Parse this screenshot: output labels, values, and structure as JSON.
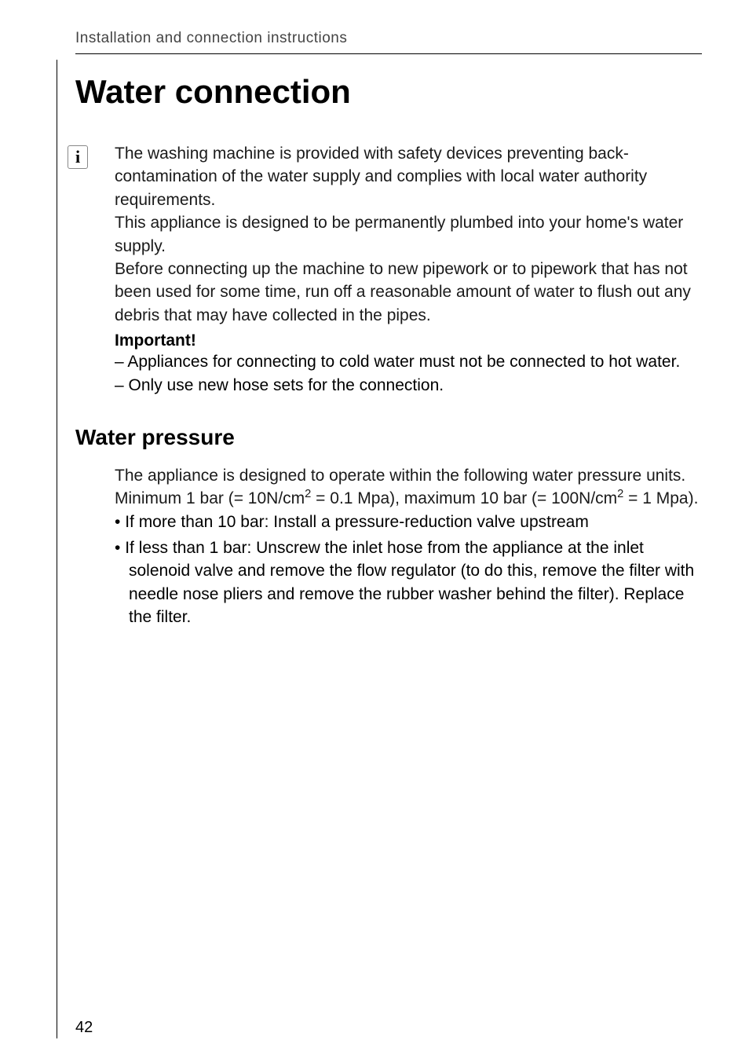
{
  "header": {
    "text": "Installation and connection instructions"
  },
  "title": "Water connection",
  "info_icon": "i",
  "intro": {
    "p1": "The washing machine is provided with safety devices preventing back-contamination of the water supply and complies with local water authority requirements.",
    "p2": "This appliance is designed to be permanently plumbed into your home's water supply.",
    "p3": "Before connecting up the machine to new pipework or to pipework that has not been used for some time, run off a reasonable amount of water to flush out any debris that may have collected in the pipes.",
    "important_label": "Important!",
    "dash_items": [
      "Appliances for connecting to cold water must not be connected to hot water.",
      "Only use new hose sets for the connection."
    ]
  },
  "section2": {
    "title": "Water pressure",
    "pressure_text_prefix": "The appliance is designed to operate within the following water pressure units. Minimum 1 bar (= 10N/cm",
    "pressure_text_mid1": " = 0.1 Mpa), maximum 10 bar (= 100N/cm",
    "pressure_text_suffix": " = 1 Mpa).",
    "sup": "2",
    "bullets": [
      "If more than 10 bar: Install a pressure-reduction valve upstream",
      "If less than 1 bar: Unscrew the inlet hose from the appliance at the inlet solenoid valve and remove the flow regulator (to do this, remove the filter with needle nose pliers and remove the rubber washer behind the filter). Replace the filter."
    ]
  },
  "page_number": "42",
  "colors": {
    "text": "#000000",
    "header_text": "#444444",
    "background": "#ffffff",
    "line": "#000000"
  },
  "typography": {
    "body_fontsize": 21,
    "h1_fontsize": 42,
    "h2_fontsize": 28,
    "header_fontsize": 19,
    "pagenum_fontsize": 20
  }
}
